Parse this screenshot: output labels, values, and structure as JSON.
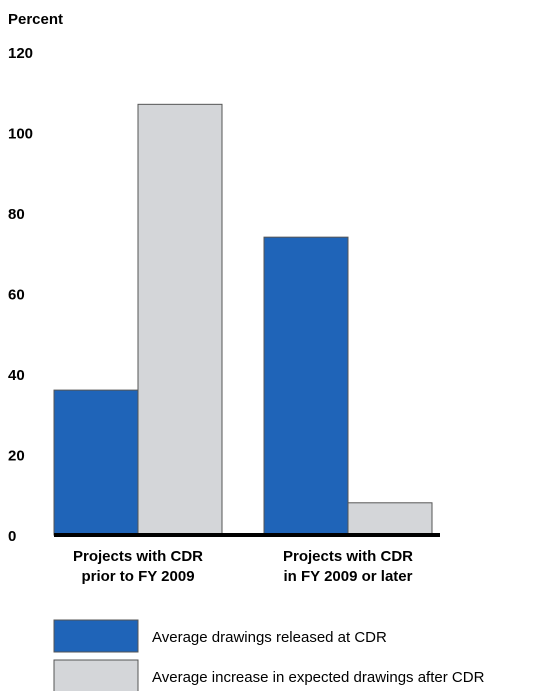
{
  "chart_data": {
    "type": "bar",
    "ylabel": "Percent",
    "ylim": [
      0,
      120
    ],
    "yticks": [
      "0",
      "20",
      "40",
      "60",
      "80",
      "100",
      "120"
    ],
    "grid": false,
    "legend_position": "bottom",
    "categories": [
      [
        "Projects with CDR",
        "prior to FY 2009"
      ],
      [
        "Projects with CDR",
        "in FY 2009 or later"
      ]
    ],
    "series": [
      {
        "name": "Average drawings released at CDR",
        "color": "#1f64b8",
        "values": [
          36,
          74
        ]
      },
      {
        "name": "Average increase in expected drawings after CDR",
        "color": "#d4d6d9",
        "values": [
          107,
          8
        ]
      }
    ]
  }
}
